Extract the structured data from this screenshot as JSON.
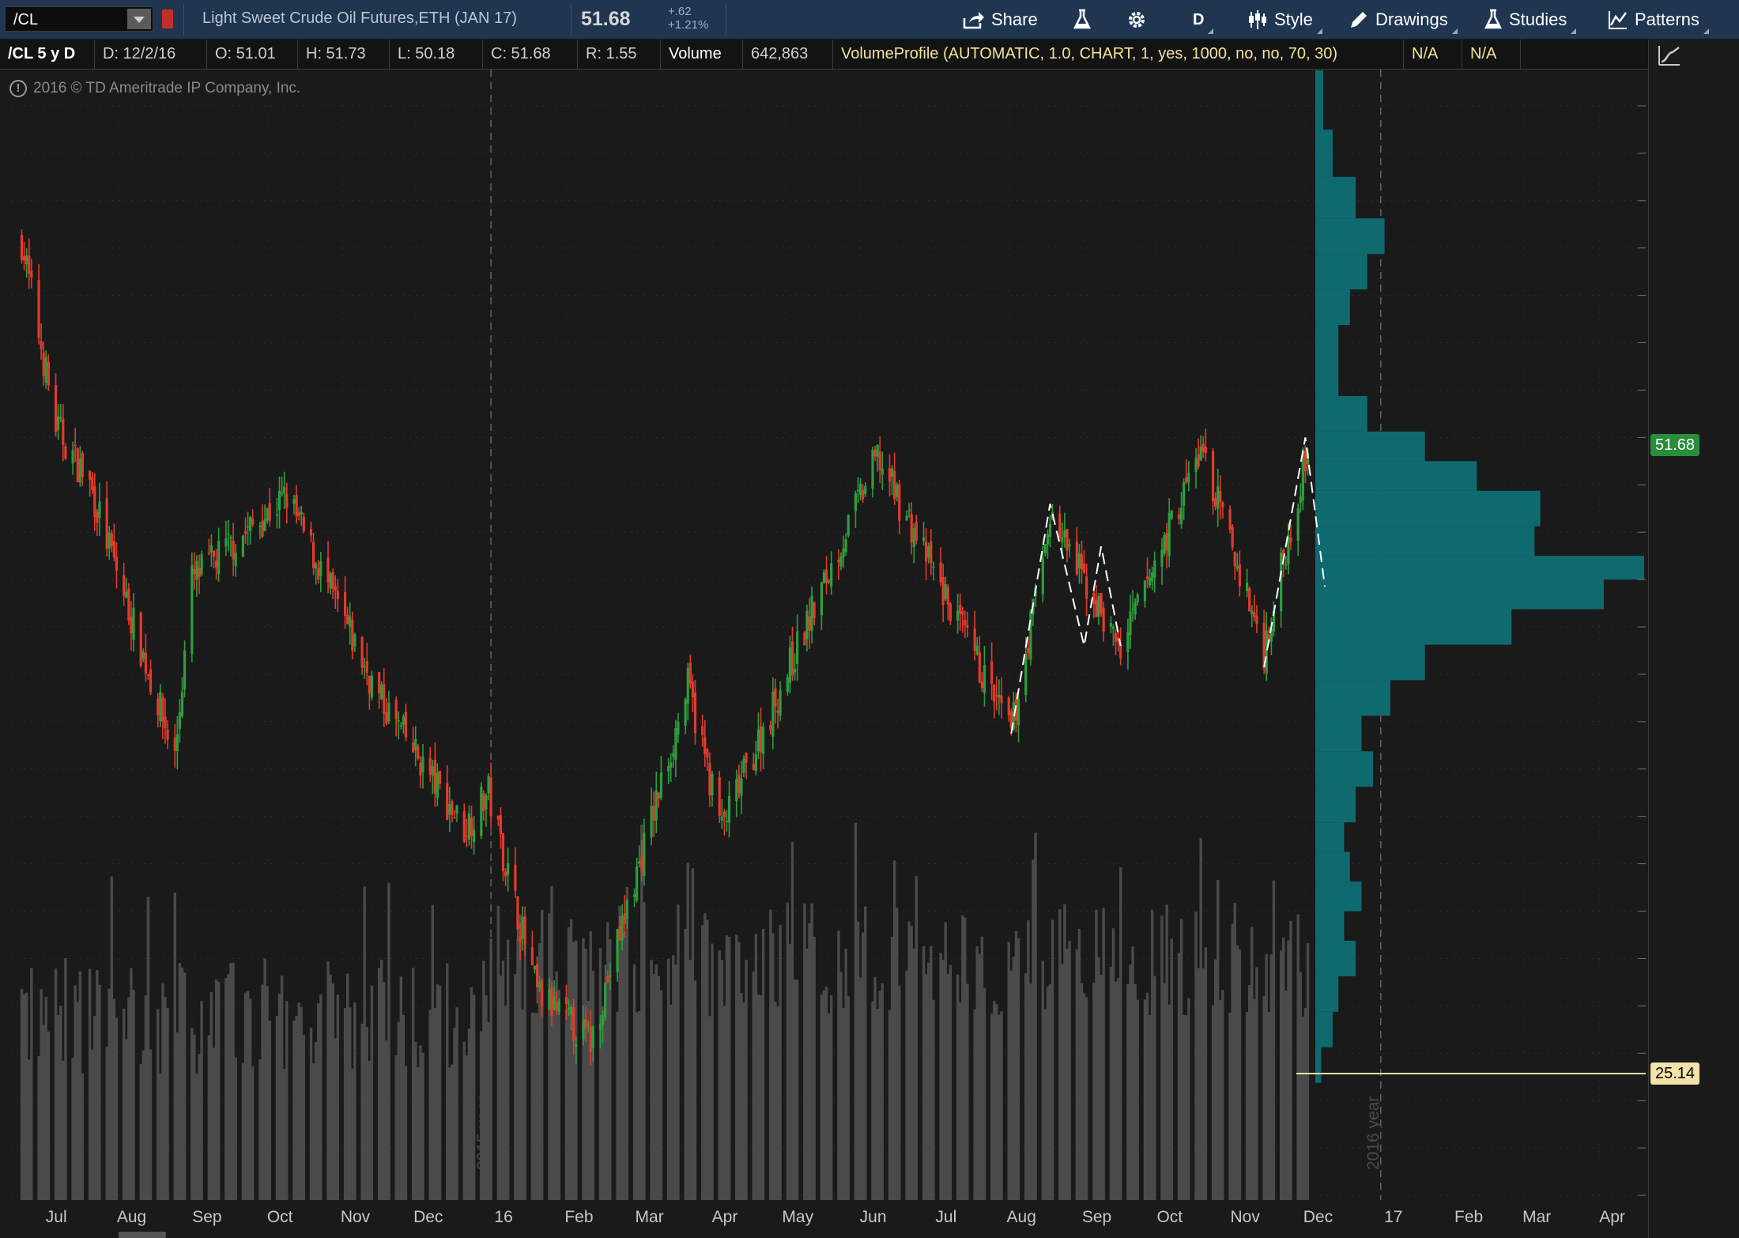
{
  "toolbar": {
    "symbol": "/CL",
    "description": "Light Sweet Crude Oil Futures,ETH (JAN 17)",
    "last_price": "51.68",
    "change_abs": "+.62",
    "change_pct": "+1.21%",
    "buttons": {
      "share": "Share",
      "timeframe": "D",
      "style": "Style",
      "drawings": "Drawings",
      "studies": "Studies",
      "patterns": "Patterns"
    }
  },
  "infobar": {
    "symbol_period": "/CL 5 y D",
    "date": "D:  12/2/16",
    "open": "O:  51.01",
    "high": "H:  51.73",
    "low": "L:  50.18",
    "close": "C:  51.68",
    "range": "R:  1.55",
    "volume_label": "Volume",
    "volume_value": "642,863",
    "study": "VolumeProfile (AUTOMATIC, 1.0, CHART, 1, yes, 1000, no, no, 70, 30)",
    "na1": "N/A",
    "na2": "N/A"
  },
  "copyright": "2016 © TD Ameritrade IP Company, Inc.",
  "colors": {
    "up": "#2e9e3e",
    "down": "#e23b2c",
    "volume": "#4a4a4a",
    "profile": "#0f6a6f",
    "last_tag": "#2a8d3c",
    "poc_line": "#f2e3a8"
  },
  "chart_data": {
    "type": "candlestick",
    "title": "",
    "y_axis": {
      "range": [
        20,
        67
      ],
      "ticks": [
        20,
        22,
        24,
        26,
        28,
        30,
        32,
        34,
        36,
        38,
        40,
        42,
        44,
        46,
        48,
        50,
        52,
        54,
        56,
        58,
        60,
        62,
        64,
        66
      ]
    },
    "x_axis_labels": [
      "Jul",
      "Aug",
      "Sep",
      "Oct",
      "Nov",
      "Dec",
      "16",
      "Feb",
      "Mar",
      "Apr",
      "May",
      "Jun",
      "Jul",
      "Aug",
      "Sep",
      "Oct",
      "Nov",
      "Dec",
      "17",
      "Feb",
      "Mar",
      "Apr"
    ],
    "year_markers": [
      "2015 year",
      "2016 year"
    ],
    "price_path_approx": [
      [
        "2015-06-22",
        60.3
      ],
      [
        "2015-07-06",
        52.5
      ],
      [
        "2015-07-20",
        50.0
      ],
      [
        "2015-08-24",
        38.5
      ],
      [
        "2015-08-31",
        46.0
      ],
      [
        "2015-10-09",
        49.5
      ],
      [
        "2015-11-16",
        41.0
      ],
      [
        "2015-12-21",
        35.5
      ],
      [
        "2015-12-31",
        37.0
      ],
      [
        "2016-01-20",
        28.5
      ],
      [
        "2016-02-11",
        26.5
      ],
      [
        "2016-03-22",
        41.5
      ],
      [
        "2016-04-05",
        35.5
      ],
      [
        "2016-06-08",
        51.2
      ],
      [
        "2016-08-02",
        39.5
      ],
      [
        "2016-08-18",
        48.7
      ],
      [
        "2016-09-16",
        43.0
      ],
      [
        "2016-10-19",
        51.5
      ],
      [
        "2016-11-14",
        43.0
      ],
      [
        "2016-12-02",
        51.68
      ]
    ],
    "volume_profile_approx": [
      [
        25.5,
        0.01
      ],
      [
        27,
        0.03
      ],
      [
        28.5,
        0.04
      ],
      [
        30,
        0.07
      ],
      [
        31.5,
        0.05
      ],
      [
        32.5,
        0.08
      ],
      [
        34,
        0.06
      ],
      [
        35,
        0.05
      ],
      [
        36.5,
        0.07
      ],
      [
        38,
        0.1
      ],
      [
        39.5,
        0.08
      ],
      [
        41,
        0.13
      ],
      [
        42.5,
        0.19
      ],
      [
        44,
        0.34
      ],
      [
        45.5,
        0.5
      ],
      [
        46.5,
        0.57
      ],
      [
        47.5,
        0.38
      ],
      [
        49,
        0.39
      ],
      [
        50.5,
        0.28
      ],
      [
        51.5,
        0.19
      ],
      [
        53,
        0.09
      ],
      [
        54.5,
        0.04
      ],
      [
        56,
        0.04
      ],
      [
        57.5,
        0.06
      ],
      [
        59,
        0.09
      ],
      [
        60.5,
        0.12
      ],
      [
        62,
        0.07
      ],
      [
        64,
        0.03
      ],
      [
        66,
        0.01
      ]
    ],
    "last_price": 51.68,
    "poc_line_price": 25.14
  }
}
